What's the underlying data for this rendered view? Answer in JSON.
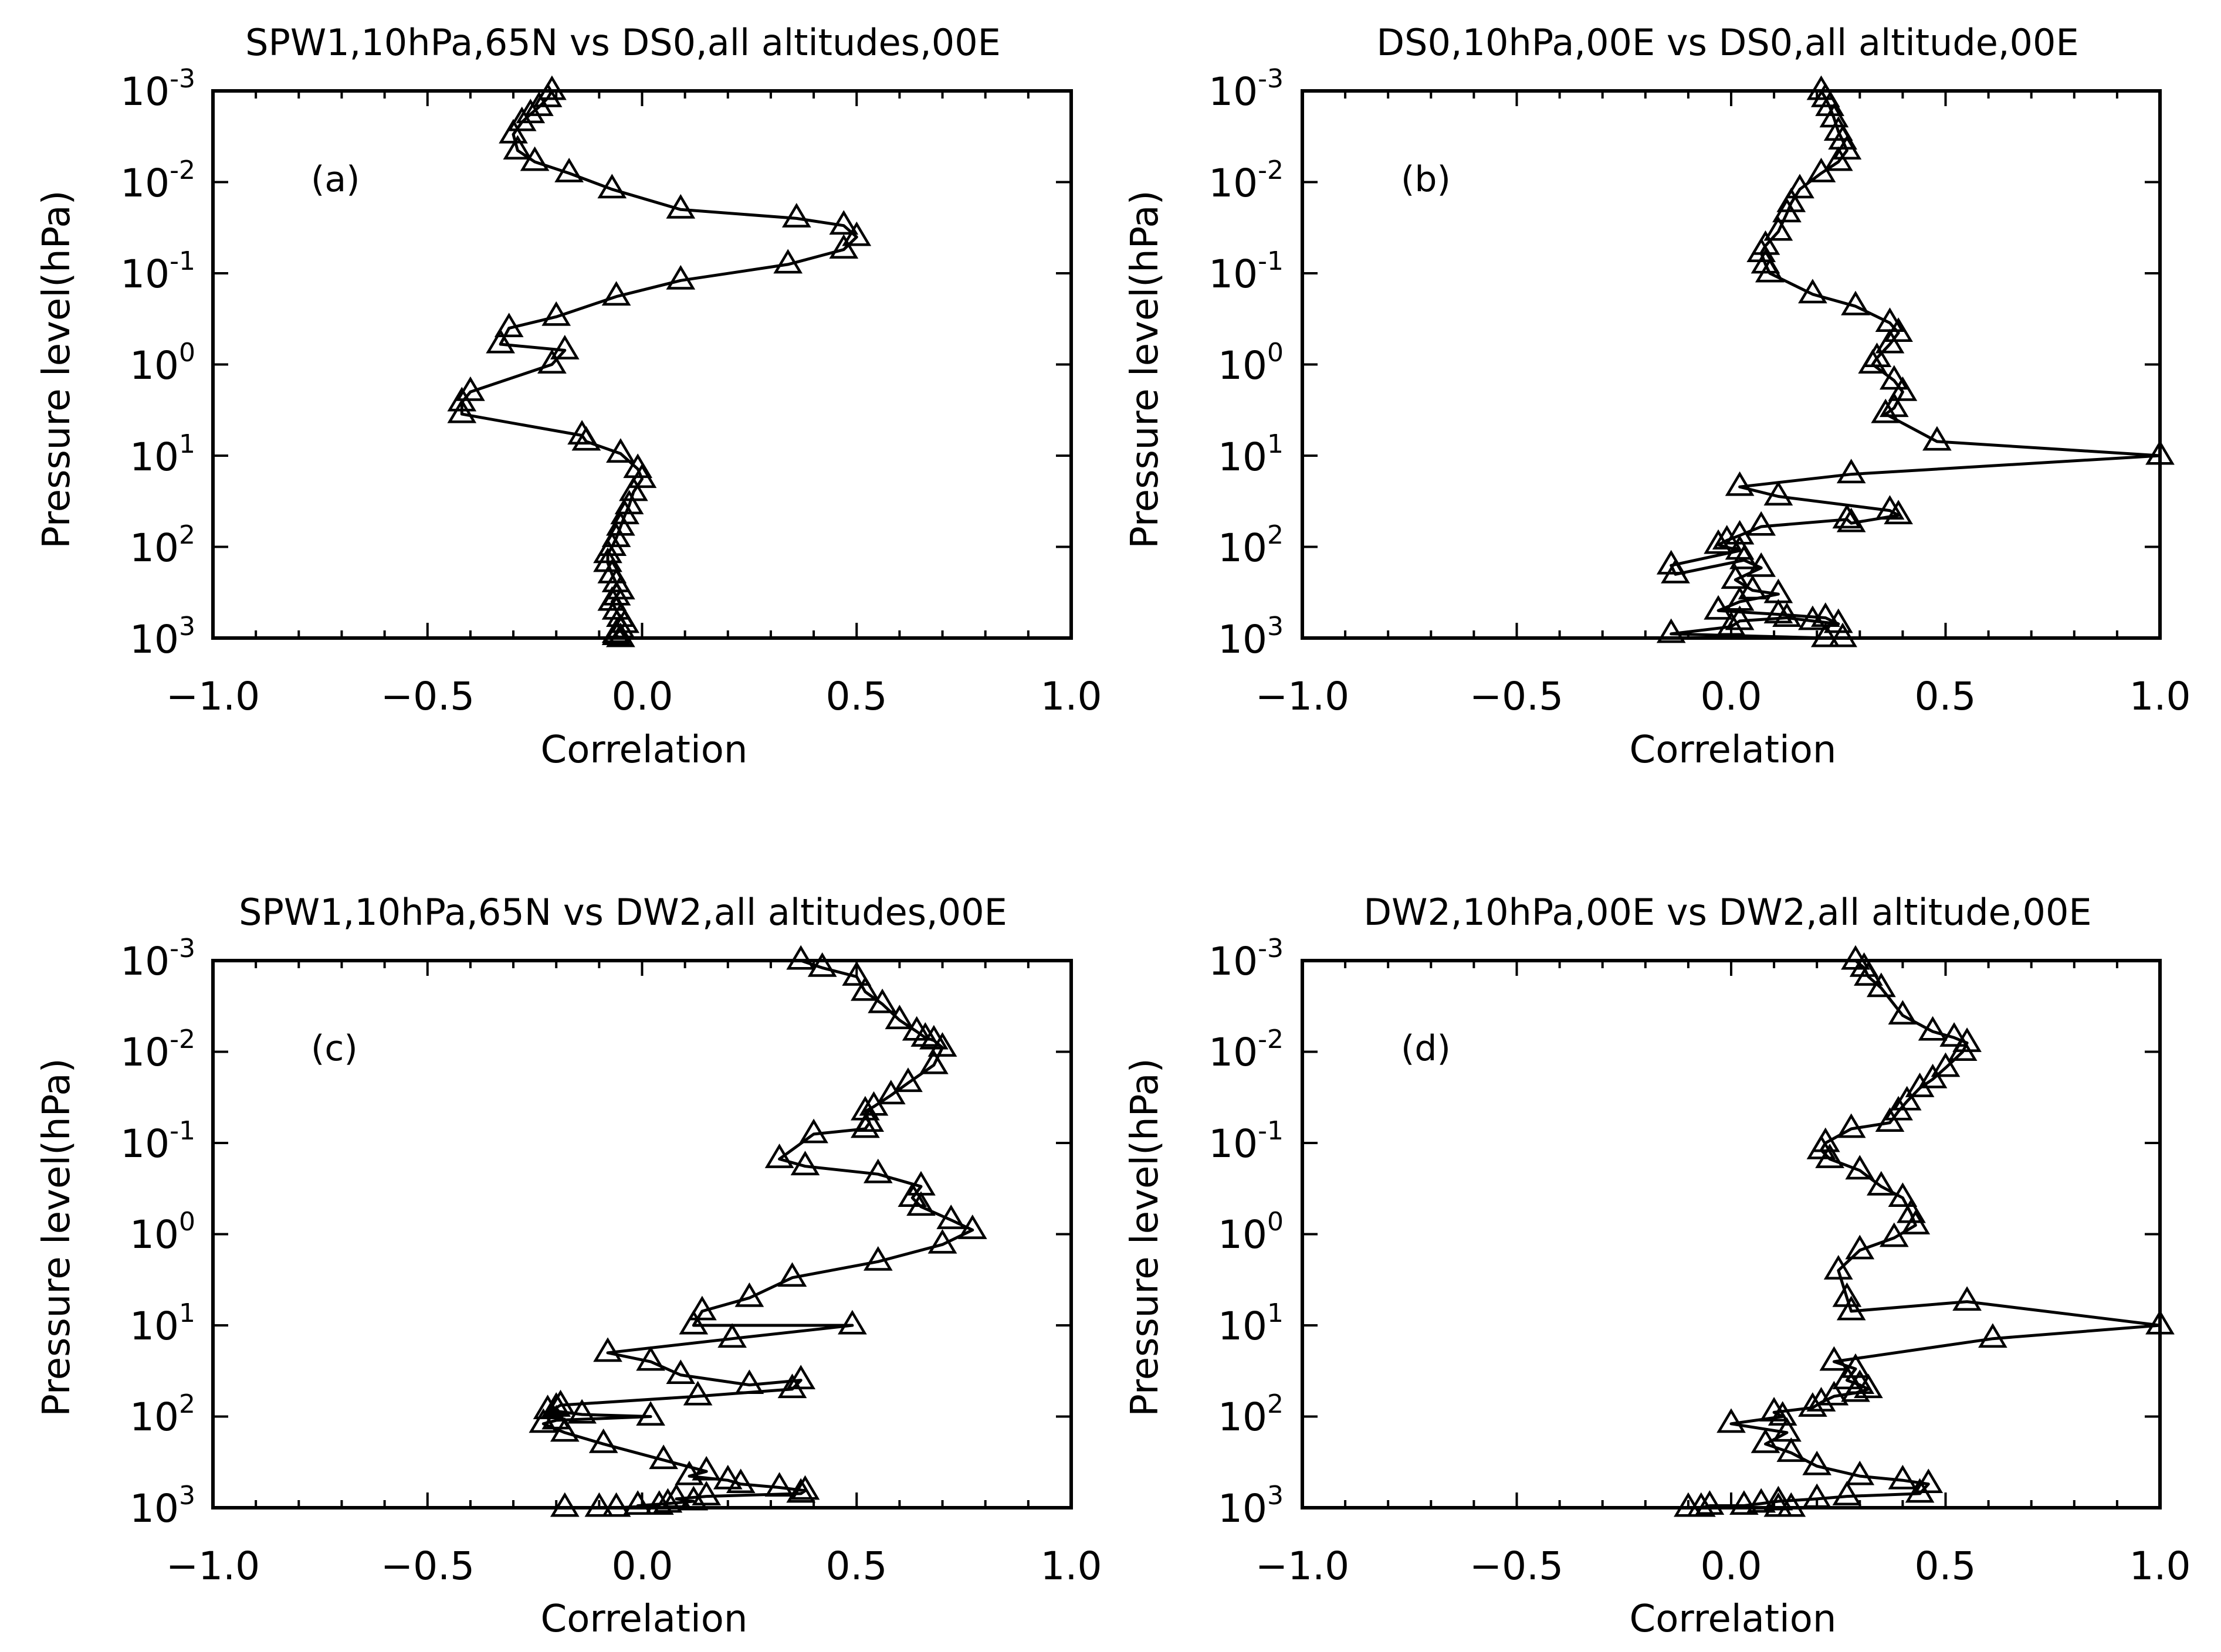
{
  "figure": {
    "panels": [
      {
        "id": "a",
        "title": "SPW1,10hPa,65N vs DS0,all altitudes,00E",
        "label": "(a)",
        "ylabel": "Pressure level(hPa)",
        "xlabel": "Correlation"
      },
      {
        "id": "b",
        "title": "DS0,10hPa,00E vs DS0,all altitude,00E",
        "label": "(b)",
        "ylabel": "Pressure level(hPa)",
        "xlabel": "Correlation"
      },
      {
        "id": "c",
        "title": "SPW1,10hPa,65N vs DW2,all altitudes,00E",
        "label": "(c)",
        "ylabel": "Pressure level(hPa)",
        "xlabel": "Correlation"
      },
      {
        "id": "d",
        "title": "DW2,10hPa,00E vs DW2,all altitude,00E",
        "label": "(d)",
        "ylabel": "Pressure level(hPa)",
        "xlabel": "Correlation"
      }
    ],
    "xticks": [
      "−1.0",
      "−0.5",
      "0.0",
      "0.5",
      "1.0"
    ],
    "ytick_base": "10",
    "ytick_exponents": [
      "-3",
      "-2",
      "-1",
      "0",
      "1",
      "2",
      "3"
    ]
  },
  "chart_data": [
    {
      "type": "line",
      "marker": "triangle",
      "title": "SPW1,10hPa,65N vs DS0,all altitudes,00E",
      "xlabel": "Correlation",
      "ylabel": "Pressure level(hPa)",
      "xlim": [
        -1.0,
        1.0
      ],
      "ylim": [
        1000,
        0.001
      ],
      "yscale": "log",
      "x": [
        -0.21,
        -0.22,
        -0.24,
        -0.26,
        -0.28,
        -0.3,
        -0.29,
        -0.25,
        -0.17,
        -0.07,
        0.09,
        0.36,
        0.47,
        0.5,
        0.47,
        0.34,
        0.09,
        -0.06,
        -0.2,
        -0.31,
        -0.33,
        -0.18,
        -0.21,
        -0.4,
        -0.42,
        -0.42,
        -0.14,
        -0.13,
        -0.05,
        -0.01,
        0.0,
        -0.02,
        -0.03,
        -0.04,
        -0.05,
        -0.06,
        -0.07,
        -0.08,
        -0.08,
        -0.07,
        -0.06,
        -0.05,
        -0.06,
        -0.07,
        -0.06,
        -0.05,
        -0.04,
        -0.05,
        -0.06,
        -0.06,
        -0.05
      ],
      "y": [
        0.001,
        0.0012,
        0.0015,
        0.0018,
        0.0022,
        0.003,
        0.0045,
        0.006,
        0.008,
        0.012,
        0.02,
        0.025,
        0.03,
        0.04,
        0.055,
        0.08,
        0.12,
        0.18,
        0.3,
        0.4,
        0.6,
        0.7,
        1.0,
        2.0,
        2.6,
        3.5,
        6.0,
        7.0,
        9.5,
        14,
        18,
        25,
        35,
        45,
        60,
        80,
        100,
        120,
        150,
        200,
        250,
        300,
        350,
        400,
        500,
        600,
        700,
        800,
        900,
        950,
        1000
      ]
    },
    {
      "type": "line",
      "marker": "triangle",
      "title": "DS0,10hPa,00E vs DS0,all altitude,00E",
      "xlabel": "Correlation",
      "ylabel": "Pressure level(hPa)",
      "xlim": [
        -1.0,
        1.0
      ],
      "ylim": [
        1000,
        0.001
      ],
      "yscale": "log",
      "x": [
        0.21,
        0.22,
        0.23,
        0.24,
        0.25,
        0.26,
        0.27,
        0.25,
        0.21,
        0.16,
        0.14,
        0.13,
        0.11,
        0.08,
        0.07,
        0.08,
        0.09,
        0.19,
        0.29,
        0.37,
        0.39,
        0.37,
        0.34,
        0.33,
        0.38,
        0.4,
        0.38,
        0.36,
        0.48,
        1.0,
        0.28,
        0.02,
        0.11,
        0.37,
        0.39,
        0.28,
        0.27,
        0.07,
        0.02,
        -0.01,
        -0.03,
        0.02,
        -0.14,
        -0.13,
        0.03,
        0.07,
        0.01,
        0.05,
        0.11,
        0.02,
        -0.03,
        0.11,
        0.22,
        0.25,
        0.19,
        0.13,
        0.02,
        0.0,
        -0.14,
        0.22,
        0.26
      ],
      "y": [
        0.001,
        0.0012,
        0.0015,
        0.002,
        0.0028,
        0.0035,
        0.0045,
        0.006,
        0.008,
        0.012,
        0.017,
        0.022,
        0.035,
        0.05,
        0.06,
        0.08,
        0.1,
        0.17,
        0.23,
        0.35,
        0.45,
        0.6,
        0.85,
        1.0,
        1.5,
        2.0,
        3.0,
        3.5,
        7.0,
        10,
        16,
        22,
        28,
        40,
        45,
        55,
        50,
        60,
        75,
        85,
        95,
        110,
        160,
        200,
        140,
        170,
        230,
        300,
        330,
        400,
        500,
        550,
        600,
        700,
        650,
        600,
        650,
        750,
        900,
        1000,
        1000
      ]
    },
    {
      "type": "line",
      "marker": "triangle",
      "title": "SPW1,10hPa,65N vs DW2,all altitudes,00E",
      "xlabel": "Correlation",
      "ylabel": "Pressure level(hPa)",
      "xlim": [
        -1.0,
        1.0
      ],
      "ylim": [
        1000,
        0.001
      ],
      "yscale": "log",
      "x": [
        0.37,
        0.42,
        0.5,
        0.52,
        0.56,
        0.6,
        0.64,
        0.66,
        0.68,
        0.7,
        0.68,
        0.62,
        0.58,
        0.54,
        0.52,
        0.53,
        0.52,
        0.4,
        0.32,
        0.38,
        0.55,
        0.65,
        0.63,
        0.65,
        0.72,
        0.77,
        0.7,
        0.55,
        0.35,
        0.25,
        0.14,
        0.12,
        0.49,
        0.21,
        -0.08,
        0.02,
        0.09,
        0.25,
        0.37,
        0.35,
        0.13,
        -0.19,
        -0.2,
        -0.22,
        -0.14,
        0.02,
        -0.2,
        -0.23,
        -0.18,
        -0.09,
        0.05,
        0.15,
        0.11,
        0.2,
        0.23,
        0.32,
        0.38,
        0.37,
        0.15,
        0.08,
        0.12,
        0.06,
        -0.01,
        0.04,
        -0.06,
        -0.1,
        -0.18
      ],
      "y": [
        0.001,
        0.0012,
        0.0015,
        0.0022,
        0.003,
        0.0045,
        0.006,
        0.007,
        0.0075,
        0.009,
        0.014,
        0.022,
        0.03,
        0.04,
        0.045,
        0.06,
        0.07,
        0.08,
        0.15,
        0.18,
        0.22,
        0.3,
        0.4,
        0.5,
        0.7,
        0.9,
        1.3,
        2.0,
        3.0,
        5.0,
        7.0,
        10,
        10,
        14,
        20,
        25,
        35,
        45,
        40,
        50,
        60,
        75,
        80,
        85,
        95,
        100,
        110,
        120,
        150,
        200,
        300,
        400,
        450,
        500,
        550,
        600,
        650,
        700,
        750,
        800,
        850,
        900,
        950,
        950,
        1000,
        1000,
        1000
      ]
    },
    {
      "type": "line",
      "marker": "triangle",
      "title": "DW2,10hPa,00E vs DW2,all altitude,00E",
      "xlabel": "Correlation",
      "ylabel": "Pressure level(hPa)",
      "xlim": [
        -1.0,
        1.0
      ],
      "ylim": [
        1000,
        0.001
      ],
      "yscale": "log",
      "x": [
        0.29,
        0.31,
        0.32,
        0.35,
        0.4,
        0.47,
        0.52,
        0.55,
        0.54,
        0.5,
        0.47,
        0.44,
        0.41,
        0.39,
        0.37,
        0.28,
        0.22,
        0.21,
        0.23,
        0.3,
        0.35,
        0.4,
        0.42,
        0.43,
        0.38,
        0.3,
        0.25,
        0.27,
        0.28,
        0.55,
        1.0,
        0.61,
        0.24,
        0.29,
        0.27,
        0.3,
        0.32,
        0.29,
        0.24,
        0.21,
        0.19,
        0.1,
        0.12,
        0.0,
        0.13,
        0.08,
        0.14,
        0.2,
        0.3,
        0.4,
        0.46,
        0.44,
        0.27,
        0.2,
        0.11,
        0.07,
        0.03,
        -0.05,
        -0.07,
        -0.1,
        0.14,
        0.11
      ],
      "y": [
        0.001,
        0.0012,
        0.0015,
        0.002,
        0.004,
        0.006,
        0.007,
        0.008,
        0.01,
        0.015,
        0.02,
        0.025,
        0.035,
        0.045,
        0.06,
        0.07,
        0.1,
        0.12,
        0.15,
        0.2,
        0.3,
        0.4,
        0.6,
        0.8,
        1.1,
        1.5,
        2.5,
        5,
        7,
        5.5,
        10,
        14,
        25,
        30,
        40,
        45,
        50,
        55,
        60,
        70,
        80,
        90,
        100,
        120,
        150,
        200,
        250,
        350,
        450,
        500,
        550,
        700,
        750,
        800,
        850,
        900,
        950,
        950,
        1000,
        1000,
        1000,
        1000
      ]
    }
  ]
}
